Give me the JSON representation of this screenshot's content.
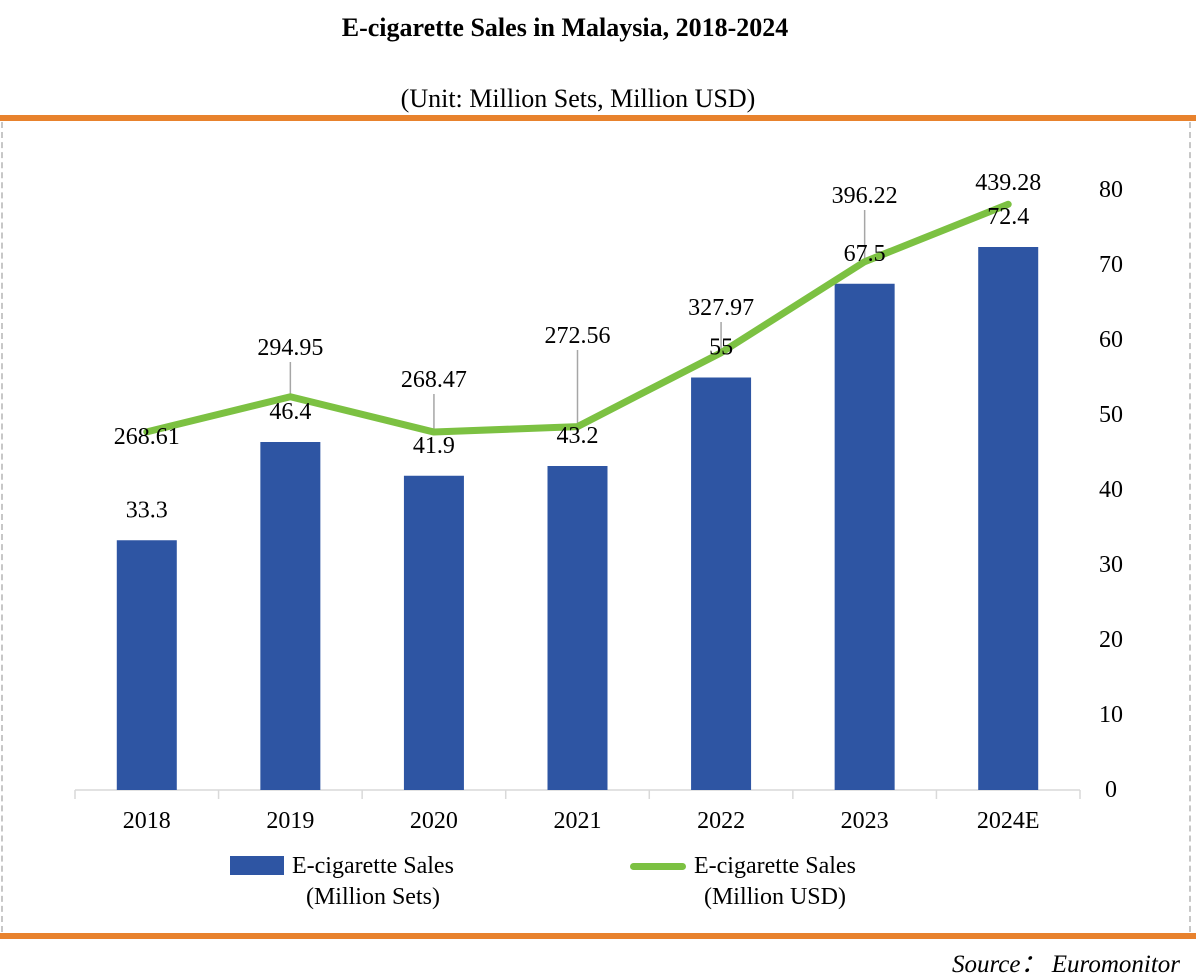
{
  "header": {
    "title": "E-cigarette Sales in Malaysia, 2018-2024",
    "subtitle": "(Unit: Million Sets, Million USD)"
  },
  "chart_data": {
    "type": "bar+line combo",
    "title": "E-cigarette Sales in Malaysia, 2018-2024",
    "subtitle": "(Unit: Million Sets, Million USD)",
    "categories": [
      "2018",
      "2019",
      "2020",
      "2021",
      "2022",
      "2023",
      "2024E"
    ],
    "series": [
      {
        "name": "E-cigarette Sales (Million Sets)",
        "type": "bar",
        "axis": "right",
        "values": [
          33.3,
          46.4,
          41.9,
          43.2,
          55,
          67.5,
          72.4
        ],
        "labels": [
          "33.3",
          "46.4",
          "41.9",
          "43.2",
          "55",
          "67.5",
          "72.4"
        ]
      },
      {
        "name": "E-cigarette Sales (Million USD)",
        "type": "line",
        "axis": "left-hidden",
        "values": [
          268.61,
          294.95,
          268.47,
          272.56,
          327.97,
          396.22,
          439.28
        ],
        "labels": [
          "268.61",
          "294.95",
          "268.47",
          "272.56",
          "327.97",
          "396.22",
          "439.28"
        ]
      }
    ],
    "right_axis": {
      "min": 0,
      "max": 80,
      "step": 10,
      "tick_labels": [
        "0",
        "10",
        "20",
        "30",
        "40",
        "50",
        "60",
        "70",
        "80"
      ]
    },
    "hidden_left_axis": {
      "min": 0,
      "max": 450
    },
    "grid": false,
    "legend_position": "bottom"
  },
  "legend": {
    "items": [
      {
        "swatch": "bar",
        "line1": "E-cigarette Sales",
        "line2": "(Million Sets)"
      },
      {
        "swatch": "line",
        "line1": "E-cigarette Sales",
        "line2": "(Million USD)"
      }
    ]
  },
  "source": {
    "text": "Source： Euromonitor"
  },
  "colors": {
    "bar": "#2e55a3",
    "line": "#7cc142",
    "accent_border": "#e8822d",
    "leader_line": "#a6a6a6",
    "axis_line": "#d9d9d9",
    "dashed_border": "#c7c7c7",
    "text": "#000000"
  }
}
